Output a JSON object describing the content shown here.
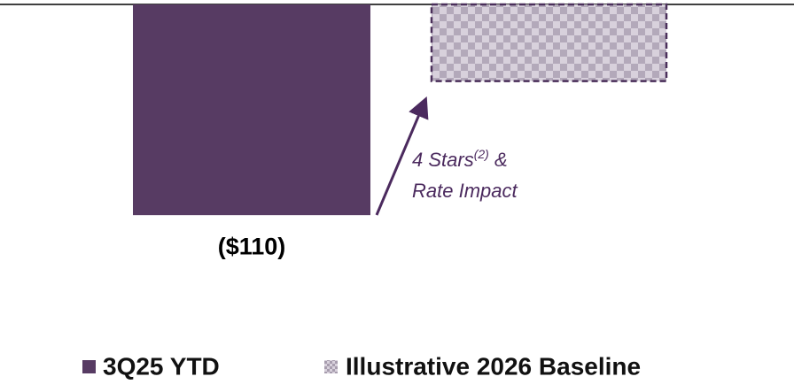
{
  "chart_data": {
    "type": "bar",
    "series": [
      {
        "name": "3Q25 YTD",
        "color": "#573b63",
        "values": [
          -110
        ],
        "value_labels": [
          "($110)"
        ]
      },
      {
        "name": "Illustrative 2026 Baseline",
        "color": "#bdb3c3",
        "values": [
          -40
        ],
        "value_labels": [
          null
        ],
        "pattern": "checker",
        "border": "dashed"
      }
    ],
    "ylim": [
      -200,
      0
    ],
    "annotation": {
      "line1": "4 Stars",
      "superscript": "(2)",
      "line1_end": " &",
      "line2": "Rate Impact",
      "color": "#4b2a5e"
    }
  }
}
